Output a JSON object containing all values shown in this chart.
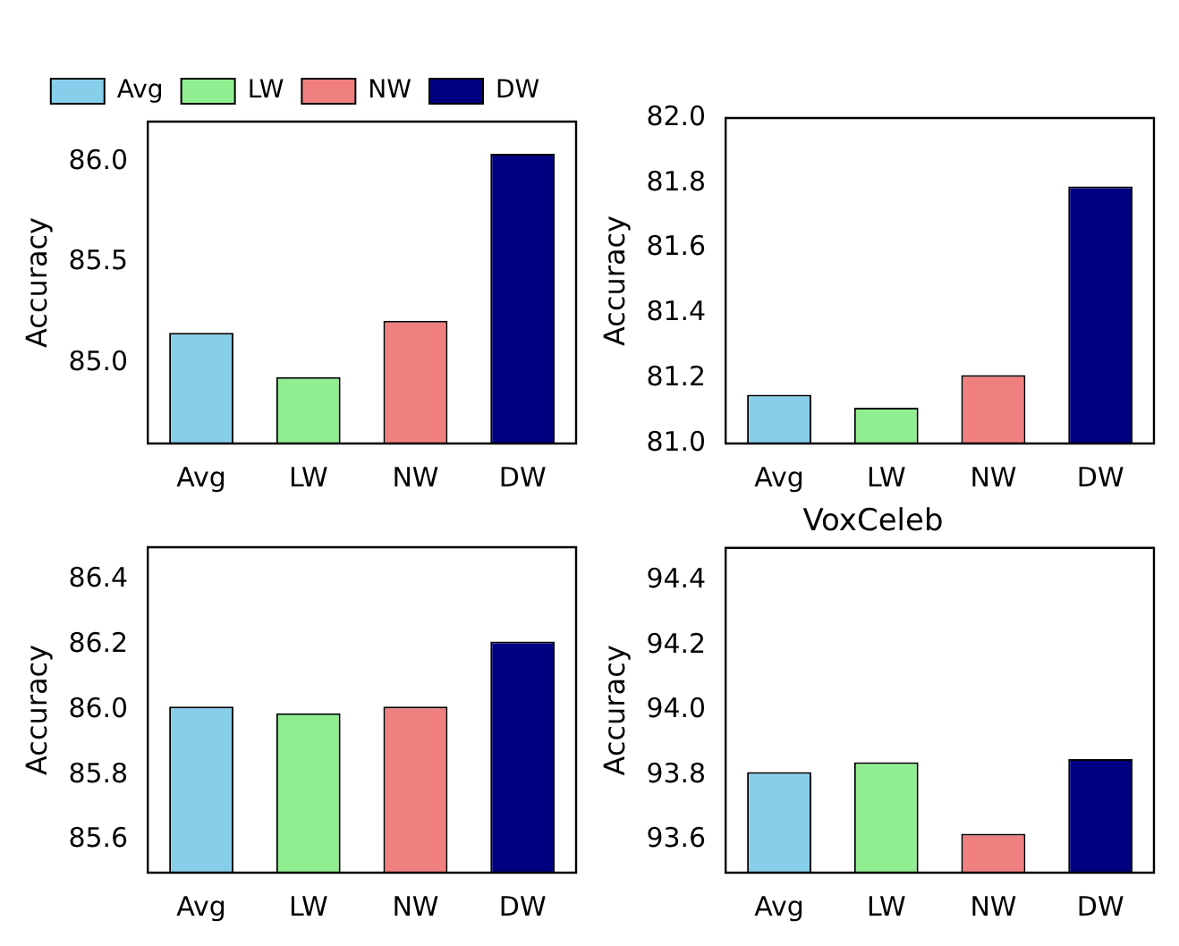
{
  "chart_data": [
    {
      "type": "bar",
      "categories": [
        "Avg",
        "LW",
        "NW",
        "DW"
      ],
      "ylabel": "Accuracy",
      "ylim": [
        84.6,
        86.2
      ],
      "yticks": [
        {
          "value": 85,
          "label": "85.0"
        },
        {
          "value": 85.5,
          "label": "85.5"
        },
        {
          "value": 86,
          "label": "86.0"
        }
      ],
      "legend": "top",
      "series": [
        {
          "name": "Avg",
          "color": "#87ceeb",
          "values": [
            85.15,
            null,
            null,
            null
          ]
        },
        {
          "name": "LW",
          "color": "#90ee90",
          "values": [
            null,
            84.93,
            null,
            null
          ]
        },
        {
          "name": "NW",
          "color": "#f08080",
          "values": [
            null,
            null,
            85.21,
            null
          ]
        },
        {
          "name": "DW",
          "color": "#000080",
          "values": [
            null,
            null,
            null,
            86.04
          ]
        }
      ]
    },
    {
      "type": "bar",
      "categories": [
        "Avg",
        "LW",
        "NW",
        "DW"
      ],
      "ylabel": "Accuracy",
      "ylim": [
        81.0,
        82.0
      ],
      "yticks": [
        {
          "value": 81,
          "label": "81.0"
        },
        {
          "value": 81.2,
          "label": "81.2"
        },
        {
          "value": 81.4,
          "label": "81.4"
        },
        {
          "value": 81.6,
          "label": "81.6"
        },
        {
          "value": 81.8,
          "label": "81.8"
        },
        {
          "value": 82,
          "label": "82.0"
        }
      ],
      "series": [
        {
          "color": "#87ceeb",
          "values": [
            81.15,
            null,
            null,
            null
          ]
        },
        {
          "color": "#90ee90",
          "values": [
            null,
            81.11,
            null,
            null
          ]
        },
        {
          "color": "#f08080",
          "values": [
            null,
            null,
            81.21,
            null
          ]
        },
        {
          "color": "#000080",
          "values": [
            null,
            null,
            null,
            81.79
          ]
        }
      ]
    },
    {
      "type": "bar",
      "categories": [
        "Avg",
        "LW",
        "NW",
        "DW"
      ],
      "ylabel": "Accuracy",
      "ylim": [
        85.5,
        86.5
      ],
      "yticks": [
        {
          "value": 85.6,
          "label": "85.6"
        },
        {
          "value": 85.8,
          "label": "85.8"
        },
        {
          "value": 86,
          "label": "86.0"
        },
        {
          "value": 86.2,
          "label": "86.2"
        },
        {
          "value": 86.4,
          "label": "86.4"
        }
      ],
      "series": [
        {
          "color": "#87ceeb",
          "values": [
            86.01,
            null,
            null,
            null
          ]
        },
        {
          "color": "#90ee90",
          "values": [
            null,
            85.99,
            null,
            null
          ]
        },
        {
          "color": "#f08080",
          "values": [
            null,
            null,
            86.01,
            null
          ]
        },
        {
          "color": "#000080",
          "values": [
            null,
            null,
            null,
            86.21
          ]
        }
      ]
    },
    {
      "type": "bar",
      "title": "VoxCeleb",
      "categories": [
        "Avg",
        "LW",
        "NW",
        "DW"
      ],
      "ylabel": "Accuracy",
      "ylim": [
        93.5,
        94.5
      ],
      "yticks": [
        {
          "value": 93.6,
          "label": "93.6"
        },
        {
          "value": 93.8,
          "label": "93.8"
        },
        {
          "value": 94,
          "label": "94.0"
        },
        {
          "value": 94.2,
          "label": "94.2"
        },
        {
          "value": 94.4,
          "label": "94.4"
        }
      ],
      "series": [
        {
          "color": "#87ceeb",
          "values": [
            93.81,
            null,
            null,
            null
          ]
        },
        {
          "color": "#90ee90",
          "values": [
            null,
            93.84,
            null,
            null
          ]
        },
        {
          "color": "#f08080",
          "values": [
            null,
            null,
            93.62,
            null
          ]
        },
        {
          "color": "#000080",
          "values": [
            null,
            null,
            null,
            93.85
          ]
        }
      ]
    }
  ]
}
